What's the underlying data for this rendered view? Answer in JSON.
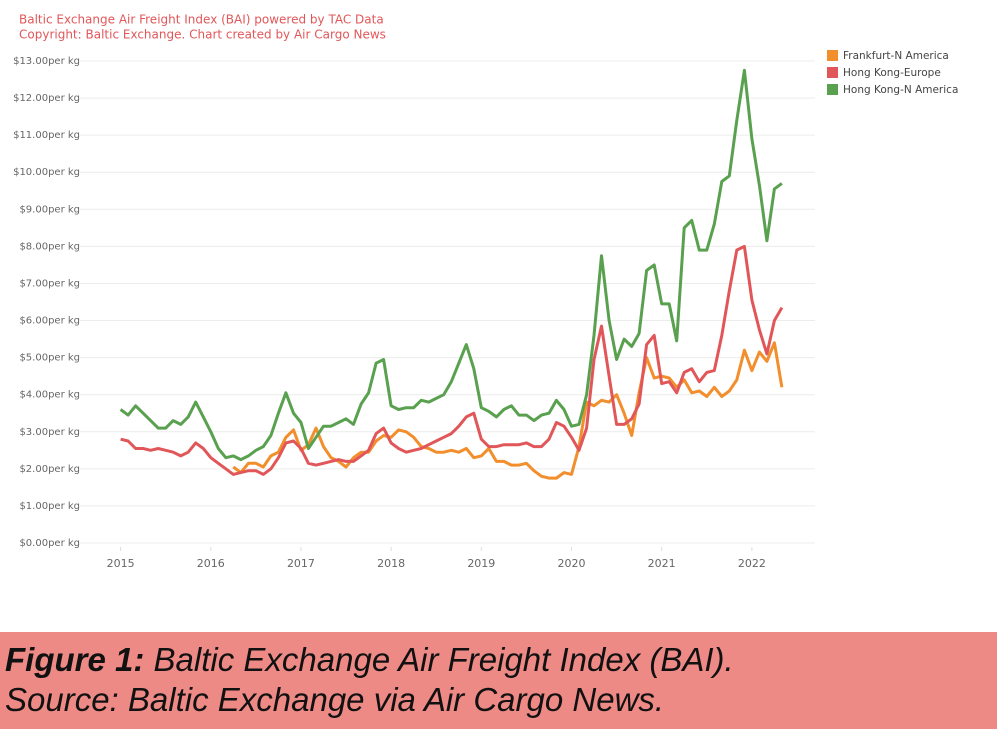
{
  "chart_data": {
    "type": "line",
    "title": "Baltic Exchange Air Freight Index (BAI) powered by TAC Data",
    "subtitle": "Copyright: Baltic Exchange. Chart created by Air Cargo News",
    "x": [
      2015,
      2015.083,
      2015.167,
      2015.25,
      2015.333,
      2015.417,
      2015.5,
      2015.583,
      2015.667,
      2015.75,
      2015.833,
      2015.917,
      2016,
      2016.083,
      2016.167,
      2016.25,
      2016.333,
      2016.417,
      2016.5,
      2016.583,
      2016.667,
      2016.75,
      2016.833,
      2016.917,
      2017,
      2017.083,
      2017.167,
      2017.25,
      2017.333,
      2017.417,
      2017.5,
      2017.583,
      2017.667,
      2017.75,
      2017.833,
      2017.917,
      2018,
      2018.083,
      2018.167,
      2018.25,
      2018.333,
      2018.417,
      2018.5,
      2018.583,
      2018.667,
      2018.75,
      2018.833,
      2018.917,
      2019,
      2019.083,
      2019.167,
      2019.25,
      2019.333,
      2019.417,
      2019.5,
      2019.583,
      2019.667,
      2019.75,
      2019.833,
      2019.917,
      2020,
      2020.083,
      2020.167,
      2020.25,
      2020.333,
      2020.417,
      2020.5,
      2020.583,
      2020.667,
      2020.75,
      2020.833,
      2020.917,
      2021,
      2021.083,
      2021.167,
      2021.25,
      2021.333,
      2021.417,
      2021.5,
      2021.583,
      2021.667,
      2021.75,
      2021.833,
      2021.917,
      2022,
      2022.083,
      2022.167,
      2022.25,
      2022.333
    ],
    "series": [
      {
        "name": "Frankfurt-N America",
        "color": "#f28e2b",
        "values": [
          null,
          null,
          null,
          null,
          null,
          null,
          null,
          null,
          null,
          null,
          null,
          null,
          null,
          null,
          null,
          2.05,
          1.9,
          2.15,
          2.15,
          2.05,
          2.35,
          2.45,
          2.85,
          3.05,
          2.5,
          2.65,
          3.1,
          2.6,
          2.3,
          2.2,
          2.05,
          2.3,
          2.45,
          2.45,
          2.75,
          2.9,
          2.85,
          3.05,
          3.0,
          2.85,
          2.6,
          2.55,
          2.45,
          2.45,
          2.5,
          2.45,
          2.55,
          2.3,
          2.35,
          2.55,
          2.2,
          2.2,
          2.1,
          2.1,
          2.15,
          1.95,
          1.8,
          1.75,
          1.75,
          1.9,
          1.85,
          2.6,
          3.8,
          3.7,
          3.85,
          3.8,
          4.0,
          3.5,
          2.9,
          4.05,
          5.0,
          4.45,
          4.5,
          4.45,
          4.2,
          4.4,
          4.05,
          4.1,
          3.95,
          4.2,
          3.95,
          4.1,
          4.4,
          5.2,
          4.65,
          5.15,
          4.9,
          5.4,
          4.2
        ]
      },
      {
        "name": "Hong Kong-Europe",
        "color": "#e15759",
        "values": [
          2.8,
          2.75,
          2.55,
          2.55,
          2.5,
          2.55,
          2.5,
          2.45,
          2.35,
          2.45,
          2.7,
          2.55,
          2.3,
          2.15,
          2.0,
          1.85,
          1.9,
          1.95,
          1.95,
          1.85,
          2.0,
          2.3,
          2.7,
          2.75,
          2.55,
          2.15,
          2.1,
          2.15,
          2.2,
          2.25,
          2.2,
          2.2,
          2.35,
          2.5,
          2.95,
          3.1,
          2.7,
          2.55,
          2.45,
          2.5,
          2.55,
          2.65,
          2.75,
          2.85,
          2.95,
          3.15,
          3.4,
          3.5,
          2.8,
          2.6,
          2.6,
          2.65,
          2.65,
          2.65,
          2.7,
          2.6,
          2.6,
          2.8,
          3.25,
          3.15,
          2.85,
          2.5,
          3.1,
          4.95,
          5.85,
          4.5,
          3.2,
          3.2,
          3.35,
          3.75,
          5.35,
          5.6,
          4.3,
          4.35,
          4.05,
          4.6,
          4.7,
          4.35,
          4.6,
          4.65,
          5.6,
          6.8,
          7.9,
          8.0,
          6.55,
          5.75,
          5.1,
          6.0,
          6.35
        ]
      },
      {
        "name": "Hong Kong-N America",
        "color": "#59a14f",
        "values": [
          3.6,
          3.45,
          3.7,
          3.5,
          3.3,
          3.1,
          3.1,
          3.3,
          3.2,
          3.4,
          3.8,
          3.4,
          3.0,
          2.55,
          2.3,
          2.35,
          2.25,
          2.35,
          2.5,
          2.6,
          2.9,
          3.5,
          4.05,
          3.5,
          3.25,
          2.55,
          2.85,
          3.15,
          3.15,
          3.25,
          3.35,
          3.2,
          3.75,
          4.05,
          4.85,
          4.95,
          3.7,
          3.6,
          3.65,
          3.65,
          3.85,
          3.8,
          3.9,
          4.0,
          4.35,
          4.85,
          5.35,
          4.7,
          3.65,
          3.55,
          3.4,
          3.6,
          3.7,
          3.45,
          3.45,
          3.3,
          3.45,
          3.5,
          3.85,
          3.6,
          3.15,
          3.2,
          4.0,
          5.6,
          7.75,
          6.0,
          4.95,
          5.5,
          5.3,
          5.65,
          7.35,
          7.5,
          6.45,
          6.45,
          5.45,
          8.5,
          8.7,
          7.9,
          7.9,
          8.6,
          9.75,
          9.9,
          11.4,
          12.75,
          10.9,
          9.65,
          8.15,
          9.55,
          9.7
        ]
      }
    ],
    "xlim": [
      2014.55,
      2022.7
    ],
    "xticks": [
      2015,
      2016,
      2017,
      2018,
      2019,
      2020,
      2021,
      2022
    ],
    "ylim": [
      0,
      13
    ],
    "yticks": [
      {
        "value": 0,
        "label": "$0.00per kg"
      },
      {
        "value": 1,
        "label": "$1.00per kg"
      },
      {
        "value": 2,
        "label": "$2.00per kg"
      },
      {
        "value": 3,
        "label": "$3.00per kg"
      },
      {
        "value": 4,
        "label": "$4.00per kg"
      },
      {
        "value": 5,
        "label": "$5.00per kg"
      },
      {
        "value": 6,
        "label": "$6.00per kg"
      },
      {
        "value": 7,
        "label": "$7.00per kg"
      },
      {
        "value": 8,
        "label": "$8.00per kg"
      },
      {
        "value": 9,
        "label": "$9.00per kg"
      },
      {
        "value": 10,
        "label": "$10.00per kg"
      },
      {
        "value": 11,
        "label": "$11.00per kg"
      },
      {
        "value": 12,
        "label": "$12.00per kg"
      },
      {
        "value": 13,
        "label": "$13.00per kg"
      }
    ],
    "grid": true,
    "legend": "top-right"
  },
  "caption": {
    "label": "Figure 1:",
    "text": " Baltic Exchange Air Freight Index (BAI).",
    "source": "Source: Baltic Exchange via Air Cargo News."
  }
}
